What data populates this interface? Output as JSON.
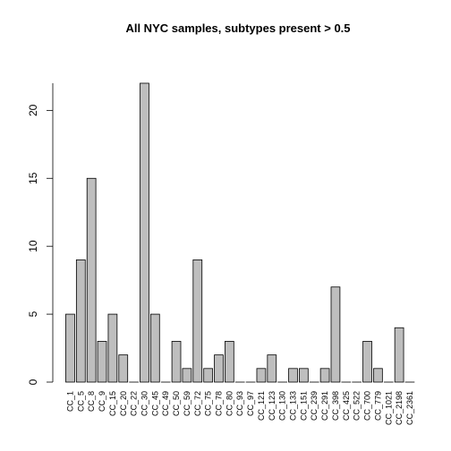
{
  "chart_data": {
    "type": "bar",
    "title": "All NYC samples, subtypes present > 0.5",
    "xlabel": "",
    "ylabel": "",
    "ylim": [
      0,
      22
    ],
    "yticks": [
      0,
      5,
      10,
      15,
      20
    ],
    "grid": false,
    "bar_color": "#bebebe",
    "border_color": "#000000",
    "categories": [
      "CC_1",
      "CC_5",
      "CC_8",
      "CC_9",
      "CC_15",
      "CC_20",
      "CC_22",
      "CC_30",
      "CC_45",
      "CC_49",
      "CC_50",
      "CC_59",
      "CC_72",
      "CC_75",
      "CC_78",
      "CC_80",
      "CC_93",
      "CC_97",
      "CC_121",
      "CC_123",
      "CC_130",
      "CC_133",
      "CC_151",
      "CC_239",
      "CC_291",
      "CC_398",
      "CC_425",
      "CC_522",
      "CC_700",
      "CC_779",
      "CC_1021",
      "CC_2198",
      "CC_2361"
    ],
    "values": [
      5,
      9,
      15,
      3,
      5,
      2,
      0,
      22,
      5,
      0,
      3,
      1,
      9,
      1,
      2,
      3,
      0,
      0,
      1,
      2,
      0,
      1,
      1,
      0,
      1,
      7,
      0,
      0,
      3,
      1,
      0,
      4,
      0
    ]
  }
}
